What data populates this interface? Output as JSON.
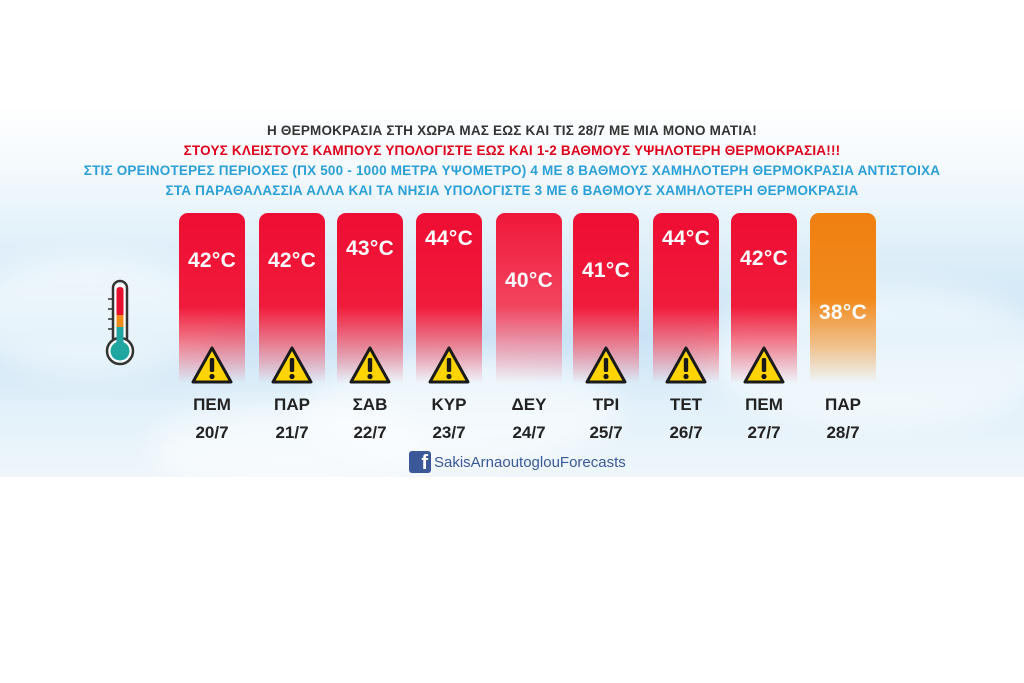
{
  "headline": {
    "line1": "Η ΘΕΡΜΟΚΡΑΣΙΑ ΣΤΗ ΧΩΡΑ ΜΑΣ ΕΩΣ ΚΑΙ ΤΙΣ 28/7 ΜΕ ΜΙΑ ΜΟΝΟ ΜΑΤΙΑ!",
    "line2": "ΣΤΟΥΣ ΚΛΕΙΣΤΟΥΣ ΚΑΜΠΟΥΣ ΥΠΟΛΟΓΙΣΤΕ ΕΩΣ ΚΑΙ 1-2 ΒΑΘΜΟΥΣ ΥΨΗΛΟΤΕΡΗ ΘΕΡΜΟΚΡΑΣΙΑ!!!",
    "line3": "ΣΤΙΣ ΟΡΕΙΝΟΤΕΡΕΣ ΠΕΡΙΟΧΕΣ (ΠΧ 500 - 1000 ΜΕΤΡΑ ΥΨΟΜΕΤΡΟ) 4 ΜΕ 8 ΒΑΘΜΟΥΣ ΧΑΜΗΛΟΤΕΡΗ ΘΕΡΜΟΚΡΑΣΙΑ ΑΝΤΙΣΤΟΙΧΑ",
    "line4": "ΣΤΑ ΠΑΡΑΘΑΛΑΣΣΙΑ ΑΛΛΑ ΚΑΙ ΤΑ ΝΗΣΙΑ ΥΠΟΛΟΓΙΣΤΕ 3 ΜΕ 6 ΒΑΘΜΟΥΣ ΧΑΜΗΛΟΤΕΡΗ ΘΕΡΜΟΚΡΑΣΙΑ"
  },
  "colors": {
    "hot": "#ef0d33",
    "orange": "#f08010",
    "warning": "#ffd400",
    "title_red": "#e0001b",
    "title_blue": "#2a9fd8",
    "facebook": "#3b5998"
  },
  "thermometer_icon": "thermometer-icon",
  "warning_icon": "warning-triangle-icon",
  "days": [
    {
      "day": "ΠΕΜ",
      "date": "20/7",
      "temp": "42°C",
      "warning": true,
      "tone": "hot"
    },
    {
      "day": "ΠΑΡ",
      "date": "21/7",
      "temp": "42°C",
      "warning": true,
      "tone": "hot"
    },
    {
      "day": "ΣΑΒ",
      "date": "22/7",
      "temp": "43°C",
      "warning": true,
      "tone": "hot"
    },
    {
      "day": "ΚΥΡ",
      "date": "23/7",
      "temp": "44°C",
      "warning": true,
      "tone": "hot"
    },
    {
      "day": "ΔΕΥ",
      "date": "24/7",
      "temp": "40°C",
      "warning": false,
      "tone": "mild"
    },
    {
      "day": "ΤΡΙ",
      "date": "25/7",
      "temp": "41°C",
      "warning": true,
      "tone": "hot"
    },
    {
      "day": "ΤΕΤ",
      "date": "26/7",
      "temp": "44°C",
      "warning": true,
      "tone": "hot"
    },
    {
      "day": "ΠΕΜ",
      "date": "27/7",
      "temp": "42°C",
      "warning": true,
      "tone": "hot"
    },
    {
      "day": "ΠΑΡ",
      "date": "28/7",
      "temp": "38°C",
      "warning": false,
      "tone": "orange"
    }
  ],
  "footer": {
    "icon": "facebook-icon",
    "icon_letter": "f",
    "text": "SakisArnaoutoglouForecasts"
  }
}
